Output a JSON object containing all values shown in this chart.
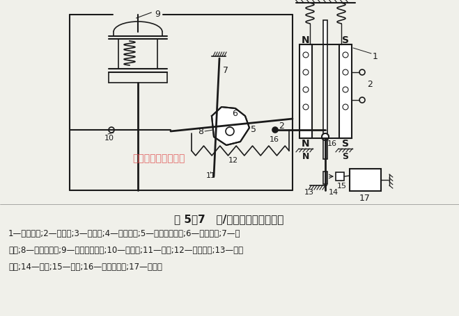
{
  "title": "图 5－7   电/气阀门定位器原理图",
  "caption_line1": "1—力矩马达;2—导磁体;3—主杠杆;4—平衡弹簧;5—反馈凸轮支点;6—反馈凸轮;7—副",
  "caption_line2": "杠杆;8—副杠杆支点;9—气动执行机构;10—反馈杆;11—滚动;12—反馈弹簧;13—调零",
  "caption_line3": "弹簧;14—挡板;15—噴嘴;16—主杠杆支点;17—放大器",
  "watermark": "上海湖泉电动阀门厂",
  "bg_color": "#f0f0ea",
  "diagram_color": "#1a1a1a",
  "watermark_color": "#e05050"
}
